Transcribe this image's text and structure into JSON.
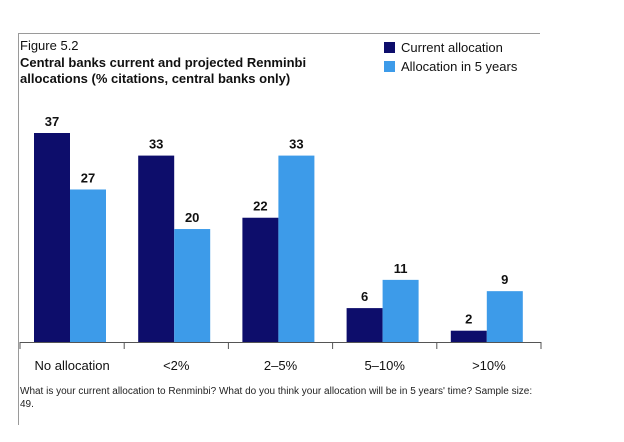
{
  "figure_label": "Figure 5.2",
  "colors": {
    "current": "#0d0d6b",
    "projected": "#3d9be9",
    "axis": "#555555"
  },
  "chart_data": {
    "type": "bar",
    "title": "Central banks current and projected Renminbi allocations (% citations, central banks only)",
    "xlabel": "",
    "ylabel": "",
    "ylim": [
      0,
      37
    ],
    "grid": false,
    "legend_position": "top-right",
    "categories": [
      "No allocation",
      "<2%",
      "2–5%",
      "5–10%",
      ">10%"
    ],
    "series": [
      {
        "name": "Current allocation",
        "color": "#0d0d6b",
        "values": [
          37,
          33,
          22,
          6,
          2
        ]
      },
      {
        "name": "Allocation in 5 years",
        "color": "#3d9be9",
        "values": [
          27,
          20,
          33,
          11,
          9
        ]
      }
    ]
  },
  "footnote": "What is your current allocation to Renminbi? What do you think your allocation will be in 5 years' time? Sample size: 49."
}
